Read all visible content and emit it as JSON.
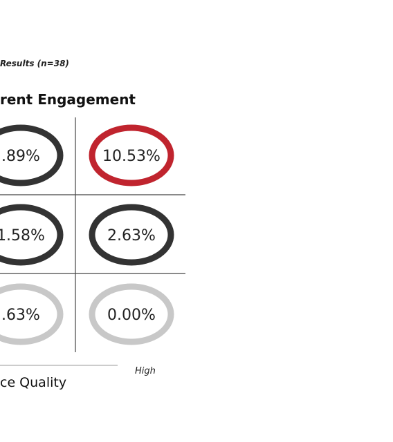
{
  "chart_data": {
    "type": "table",
    "title": "rent Engagement",
    "subtitle": "Results (n=38)",
    "xlabel": "ce Quality",
    "x_high_label": "High",
    "cells": [
      {
        "row": 0,
        "col": 0,
        "value": ".89%",
        "ring_color": "#333333"
      },
      {
        "row": 0,
        "col": 1,
        "value": "10.53%",
        "ring_color": "#c0242e"
      },
      {
        "row": 1,
        "col": 0,
        "value": "1.58%",
        "ring_color": "#333333"
      },
      {
        "row": 1,
        "col": 1,
        "value": "2.63%",
        "ring_color": "#333333"
      },
      {
        "row": 2,
        "col": 0,
        "value": ".63%",
        "ring_color": "#c8c8c8"
      },
      {
        "row": 2,
        "col": 1,
        "value": "0.00%",
        "ring_color": "#c8c8c8"
      }
    ],
    "colors": {
      "dark": "#333333",
      "highlight": "#c0242e",
      "light": "#c8c8c8",
      "grid": "#444444",
      "axis": "#999999"
    }
  }
}
